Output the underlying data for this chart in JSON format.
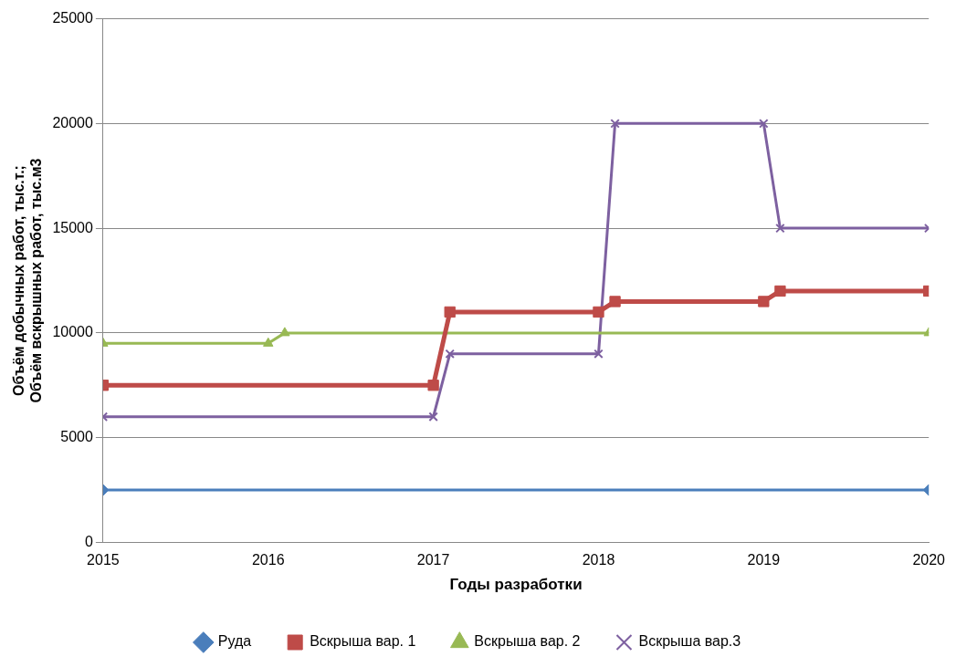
{
  "chart_data": {
    "type": "line",
    "xlabel": "Годы разработки",
    "ylabel": "Объём добычных работ, тыс.т.;\nОбъём вскрышных работ, тыс.м3",
    "xlim": [
      2015,
      2020
    ],
    "xticks": [
      2015,
      2016,
      2017,
      2018,
      2019,
      2020
    ],
    "ylim": [
      0,
      25000
    ],
    "yticks": [
      0,
      5000,
      10000,
      15000,
      20000,
      25000
    ],
    "grid": "y",
    "legend": "bottom",
    "line_style": "solid",
    "series": [
      {
        "name": "Руда",
        "color": "#4a7ebb",
        "marker": "diamond",
        "x": [
          2015,
          2020
        ],
        "values": [
          2500,
          2500
        ]
      },
      {
        "name": "Вскрыша вар. 1",
        "color": "#be4b48",
        "marker": "square",
        "x": [
          2015,
          2017,
          2017.1,
          2018,
          2018.1,
          2019,
          2019.1,
          2020
        ],
        "values": [
          7500,
          7500,
          11000,
          11000,
          11500,
          11500,
          12000,
          12000
        ]
      },
      {
        "name": "Вскрыша вар. 2",
        "color": "#98b954",
        "marker": "triangle",
        "x": [
          2015,
          2016,
          2016.1,
          2020
        ],
        "values": [
          9500,
          9500,
          10000,
          10000
        ]
      },
      {
        "name": "Вскрыша вар.3",
        "color": "#7d60a0",
        "marker": "cross",
        "x": [
          2015,
          2017,
          2017.1,
          2018,
          2018.1,
          2019,
          2019.1,
          2020
        ],
        "values": [
          6000,
          6000,
          9000,
          9000,
          20000,
          20000,
          15000,
          15000
        ]
      }
    ]
  }
}
